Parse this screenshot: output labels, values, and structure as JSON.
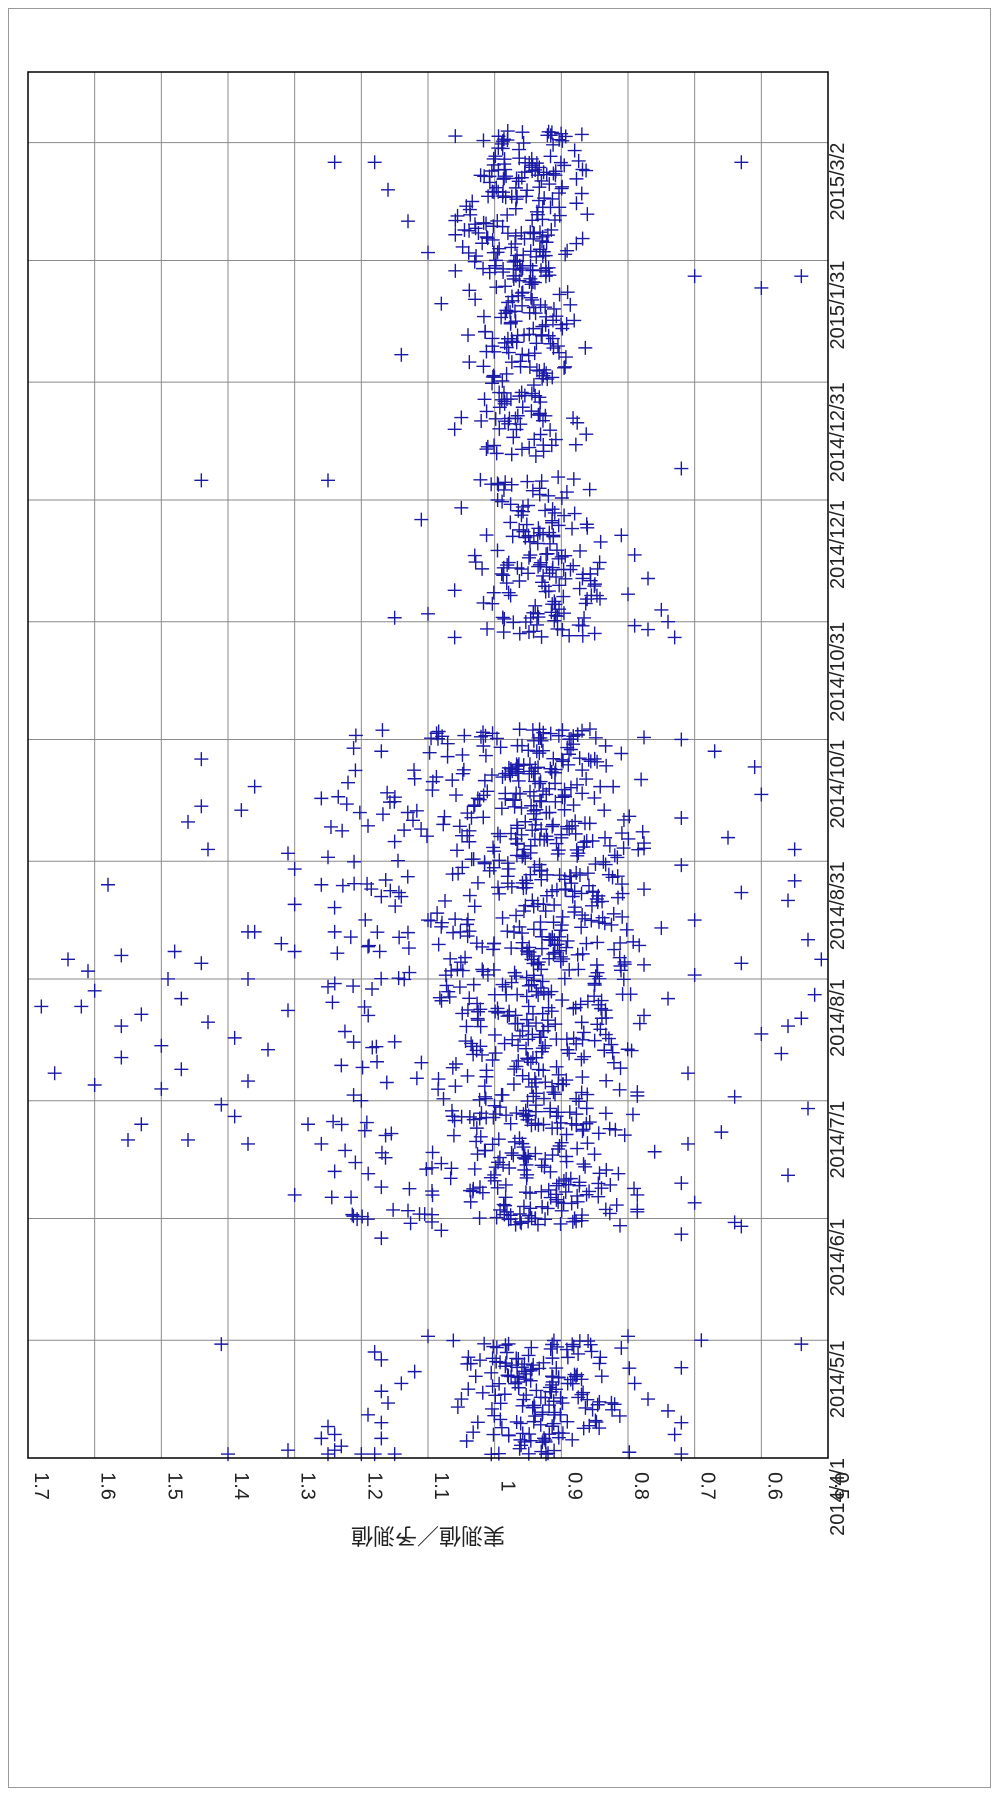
{
  "chart_data": {
    "type": "scatter",
    "title": "",
    "ylabel": "実測値／予測値",
    "xlabel": "",
    "orientation": "rotated-90-clockwise",
    "ylim": [
      0.5,
      1.7
    ],
    "xlim": [
      "2014-04-01",
      "2015-03-20"
    ],
    "yticks": [
      "0.5",
      "0.6",
      "0.7",
      "0.8",
      "0.9",
      "1",
      "1.1",
      "1.2",
      "1.3",
      "1.4",
      "1.5",
      "1.6",
      "1.7"
    ],
    "xticks": [
      {
        "label": "2014/4/1",
        "date": "2014-04-01"
      },
      {
        "label": "2014/5/1",
        "date": "2014-05-01"
      },
      {
        "label": "2014/6/1",
        "date": "2014-06-01"
      },
      {
        "label": "2014/7/1",
        "date": "2014-07-01"
      },
      {
        "label": "2014/8/1",
        "date": "2014-08-01"
      },
      {
        "label": "2014/8/31",
        "date": "2014-08-31"
      },
      {
        "label": "2014/10/1",
        "date": "2014-10-01"
      },
      {
        "label": "2014/10/31",
        "date": "2014-10-31"
      },
      {
        "label": "2014/12/1",
        "date": "2014-12-01"
      },
      {
        "label": "2014/12/31",
        "date": "2014-12-31"
      },
      {
        "label": "2015/1/31",
        "date": "2015-01-31"
      },
      {
        "label": "2015/3/2",
        "date": "2015-03-02"
      }
    ],
    "grid": true,
    "legend": "none",
    "marker": "plus",
    "color": "#1a1aa8",
    "series": [
      {
        "points": [
          [
            "2014-04-01",
            1.64
          ],
          [
            "2014-04-01",
            1.39
          ],
          [
            "2014-04-01",
            1.31
          ],
          [
            "2014-04-01",
            1.22
          ],
          [
            "2014-04-01",
            1.05
          ],
          [
            "2014-04-01",
            0.57
          ],
          [
            "2014-04-02",
            1.4
          ],
          [
            "2014-04-02",
            1.25
          ],
          [
            "2014-04-02",
            1.2
          ],
          [
            "2014-04-02",
            1.18
          ],
          [
            "2014-04-02",
            1.15
          ],
          [
            "2014-04-02",
            0.72
          ],
          [
            "2014-04-03",
            1.31
          ],
          [
            "2014-04-03",
            1.24
          ],
          [
            "2014-04-04",
            1.23
          ],
          [
            "2014-04-06",
            1.26
          ],
          [
            "2014-04-06",
            1.17
          ],
          [
            "2014-04-07",
            1.24
          ],
          [
            "2014-04-07",
            0.73
          ],
          [
            "2014-04-09",
            1.25
          ],
          [
            "2014-04-10",
            1.17
          ],
          [
            "2014-04-10",
            0.72
          ],
          [
            "2014-04-12",
            1.19
          ],
          [
            "2014-04-13",
            0.74
          ],
          [
            "2014-04-15",
            1.16
          ],
          [
            "2014-04-16",
            0.77
          ],
          [
            "2014-04-18",
            1.17
          ],
          [
            "2014-04-20",
            1.14
          ],
          [
            "2014-04-20",
            0.79
          ],
          [
            "2014-04-23",
            1.12
          ],
          [
            "2014-04-24",
            0.72
          ],
          [
            "2014-04-26",
            1.17
          ],
          [
            "2014-04-28",
            1.18
          ],
          [
            "2014-04-29",
            0.81
          ],
          [
            "2014-04-30",
            1.41
          ],
          [
            "2014-04-30",
            0.54
          ],
          [
            "2014-05-01",
            0.69
          ],
          [
            "2014-05-02",
            1.1
          ],
          [
            "2014-05-02",
            0.8
          ],
          [
            "2014-05-27",
            1.17
          ],
          [
            "2014-05-28",
            0.72
          ],
          [
            "2014-05-29",
            1.08
          ],
          [
            "2014-05-30",
            0.63
          ],
          [
            "2014-05-31",
            0.64
          ],
          [
            "2014-06-03",
            1.13
          ],
          [
            "2014-06-05",
            0.7
          ],
          [
            "2014-06-07",
            1.3
          ],
          [
            "2014-06-09",
            1.17
          ],
          [
            "2014-06-10",
            0.72
          ],
          [
            "2014-06-12",
            0.56
          ],
          [
            "2014-06-13",
            1.24
          ],
          [
            "2014-06-15",
            1.08
          ],
          [
            "2014-06-18",
            0.76
          ],
          [
            "2014-06-20",
            1.37
          ],
          [
            "2014-06-20",
            1.26
          ],
          [
            "2014-06-20",
            0.71
          ],
          [
            "2014-06-21",
            1.55
          ],
          [
            "2014-06-21",
            1.46
          ],
          [
            "2014-06-23",
            0.66
          ],
          [
            "2014-06-25",
            1.53
          ],
          [
            "2014-06-25",
            1.28
          ],
          [
            "2014-06-27",
            1.39
          ],
          [
            "2014-06-29",
            0.53
          ],
          [
            "2014-06-30",
            1.41
          ],
          [
            "2014-07-01",
            1.2
          ],
          [
            "2014-07-02",
            0.64
          ],
          [
            "2014-07-04",
            1.5
          ],
          [
            "2014-07-05",
            1.6
          ],
          [
            "2014-07-06",
            1.37
          ],
          [
            "2014-07-08",
            1.66
          ],
          [
            "2014-07-08",
            0.71
          ],
          [
            "2014-07-09",
            1.47
          ],
          [
            "2014-07-10",
            1.23
          ],
          [
            "2014-07-12",
            1.56
          ],
          [
            "2014-07-13",
            0.57
          ],
          [
            "2014-07-14",
            1.34
          ],
          [
            "2014-07-15",
            1.5
          ],
          [
            "2014-07-16",
            1.15
          ],
          [
            "2014-07-17",
            1.39
          ],
          [
            "2014-07-18",
            0.6
          ],
          [
            "2014-07-20",
            1.56
          ],
          [
            "2014-07-20",
            0.56
          ],
          [
            "2014-07-21",
            1.43
          ],
          [
            "2014-07-22",
            0.54
          ],
          [
            "2014-07-23",
            1.53
          ],
          [
            "2014-07-24",
            1.31
          ],
          [
            "2014-07-25",
            1.62
          ],
          [
            "2014-07-25",
            1.68
          ],
          [
            "2014-07-27",
            1.47
          ],
          [
            "2014-07-27",
            0.74
          ],
          [
            "2014-07-28",
            0.52
          ],
          [
            "2014-07-29",
            1.6
          ],
          [
            "2014-07-30",
            1.25
          ],
          [
            "2014-08-01",
            1.49
          ],
          [
            "2014-08-01",
            1.37
          ],
          [
            "2014-08-02",
            0.7
          ],
          [
            "2014-08-03",
            1.61
          ],
          [
            "2014-08-05",
            1.44
          ],
          [
            "2014-08-05",
            0.63
          ],
          [
            "2014-08-06",
            1.7
          ],
          [
            "2014-08-06",
            1.64
          ],
          [
            "2014-08-06",
            0.51
          ],
          [
            "2014-08-07",
            1.56
          ],
          [
            "2014-08-08",
            1.48
          ],
          [
            "2014-08-08",
            1.3
          ],
          [
            "2014-08-10",
            1.32
          ],
          [
            "2014-08-11",
            0.53
          ],
          [
            "2014-08-13",
            1.37
          ],
          [
            "2014-08-13",
            1.36
          ],
          [
            "2014-08-13",
            1.24
          ],
          [
            "2014-08-14",
            0.75
          ],
          [
            "2014-08-16",
            1.1
          ],
          [
            "2014-08-16",
            0.7
          ],
          [
            "2014-08-20",
            1.3
          ],
          [
            "2014-08-21",
            0.56
          ],
          [
            "2014-08-22",
            1.17
          ],
          [
            "2014-08-22",
            1.14
          ],
          [
            "2014-08-23",
            0.63
          ],
          [
            "2014-08-25",
            1.58
          ],
          [
            "2014-08-25",
            1.26
          ],
          [
            "2014-08-26",
            0.55
          ],
          [
            "2014-08-29",
            1.3
          ],
          [
            "2014-08-30",
            0.72
          ],
          [
            "2014-09-01",
            1.25
          ],
          [
            "2014-09-02",
            1.31
          ],
          [
            "2014-09-03",
            1.43
          ],
          [
            "2014-09-03",
            0.55
          ],
          [
            "2014-09-05",
            1.15
          ],
          [
            "2014-09-06",
            0.65
          ],
          [
            "2014-09-09",
            1.19
          ],
          [
            "2014-09-10",
            1.46
          ],
          [
            "2014-09-11",
            0.72
          ],
          [
            "2014-09-13",
            1.38
          ],
          [
            "2014-09-14",
            1.44
          ],
          [
            "2014-09-16",
            1.26
          ],
          [
            "2014-09-17",
            0.6
          ],
          [
            "2014-09-19",
            1.36
          ],
          [
            "2014-09-20",
            1.22
          ],
          [
            "2014-09-21",
            1.12
          ],
          [
            "2014-09-22",
            0.5
          ],
          [
            "2014-09-24",
            0.61
          ],
          [
            "2014-09-26",
            1.44
          ],
          [
            "2014-09-28",
            1.17
          ],
          [
            "2014-09-28",
            0.67
          ],
          [
            "2014-10-01",
            0.72
          ],
          [
            "2014-10-27",
            1.06
          ],
          [
            "2014-10-27",
            0.73
          ],
          [
            "2014-10-28",
            0.85
          ],
          [
            "2014-10-29",
            0.77
          ],
          [
            "2014-10-30",
            0.79
          ],
          [
            "2014-10-31",
            0.74
          ],
          [
            "2014-11-01",
            1.15
          ],
          [
            "2014-11-02",
            1.1
          ],
          [
            "2014-11-03",
            0.75
          ],
          [
            "2014-11-07",
            0.8
          ],
          [
            "2014-11-08",
            1.06
          ],
          [
            "2014-11-11",
            0.77
          ],
          [
            "2014-11-17",
            0.79
          ],
          [
            "2014-11-22",
            0.81
          ],
          [
            "2014-11-26",
            1.11
          ],
          [
            "2014-11-29",
            1.05
          ],
          [
            "2014-12-06",
            1.44
          ],
          [
            "2014-12-06",
            1.25
          ],
          [
            "2014-12-09",
            0.72
          ],
          [
            "2014-12-19",
            1.06
          ],
          [
            "2014-12-22",
            1.05
          ],
          [
            "2015-01-07",
            1.14
          ],
          [
            "2015-01-12",
            1.04
          ],
          [
            "2015-01-20",
            1.08
          ],
          [
            "2015-01-24",
            0.6
          ],
          [
            "2015-01-27",
            0.7
          ],
          [
            "2015-01-27",
            0.54
          ],
          [
            "2015-02-02",
            1.1
          ],
          [
            "2015-02-10",
            1.13
          ],
          [
            "2015-02-18",
            1.16
          ],
          [
            "2015-02-25",
            1.24
          ],
          [
            "2015-02-25",
            1.18
          ],
          [
            "2015-02-25",
            0.63
          ],
          [
            "2015-02-28",
            0.88
          ]
        ]
      }
    ],
    "density_clusters": [
      {
        "from": "2014-04-01",
        "to": "2014-05-01",
        "y_center": 0.93,
        "y_spread": 0.06,
        "count": 170
      },
      {
        "from": "2014-05-30",
        "to": "2014-07-12",
        "y_center": 0.94,
        "y_spread": 0.07,
        "count": 190
      },
      {
        "from": "2014-07-12",
        "to": "2014-08-27",
        "y_center": 0.93,
        "y_spread": 0.07,
        "count": 200
      },
      {
        "from": "2014-08-27",
        "to": "2014-10-04",
        "y_center": 0.93,
        "y_spread": 0.07,
        "count": 200
      },
      {
        "from": "2014-10-27",
        "to": "2014-12-07",
        "y_center": 0.94,
        "y_spread": 0.045,
        "count": 150
      },
      {
        "from": "2014-12-12",
        "to": "2015-01-28",
        "y_center": 0.95,
        "y_spread": 0.04,
        "count": 160
      },
      {
        "from": "2015-01-28",
        "to": "2015-03-05",
        "y_center": 0.96,
        "y_spread": 0.045,
        "count": 180
      }
    ],
    "scatter_bands": [
      {
        "from": "2014-05-30",
        "to": "2014-10-04",
        "y_min": 0.8,
        "y_max": 1.25,
        "count": 260
      }
    ]
  }
}
